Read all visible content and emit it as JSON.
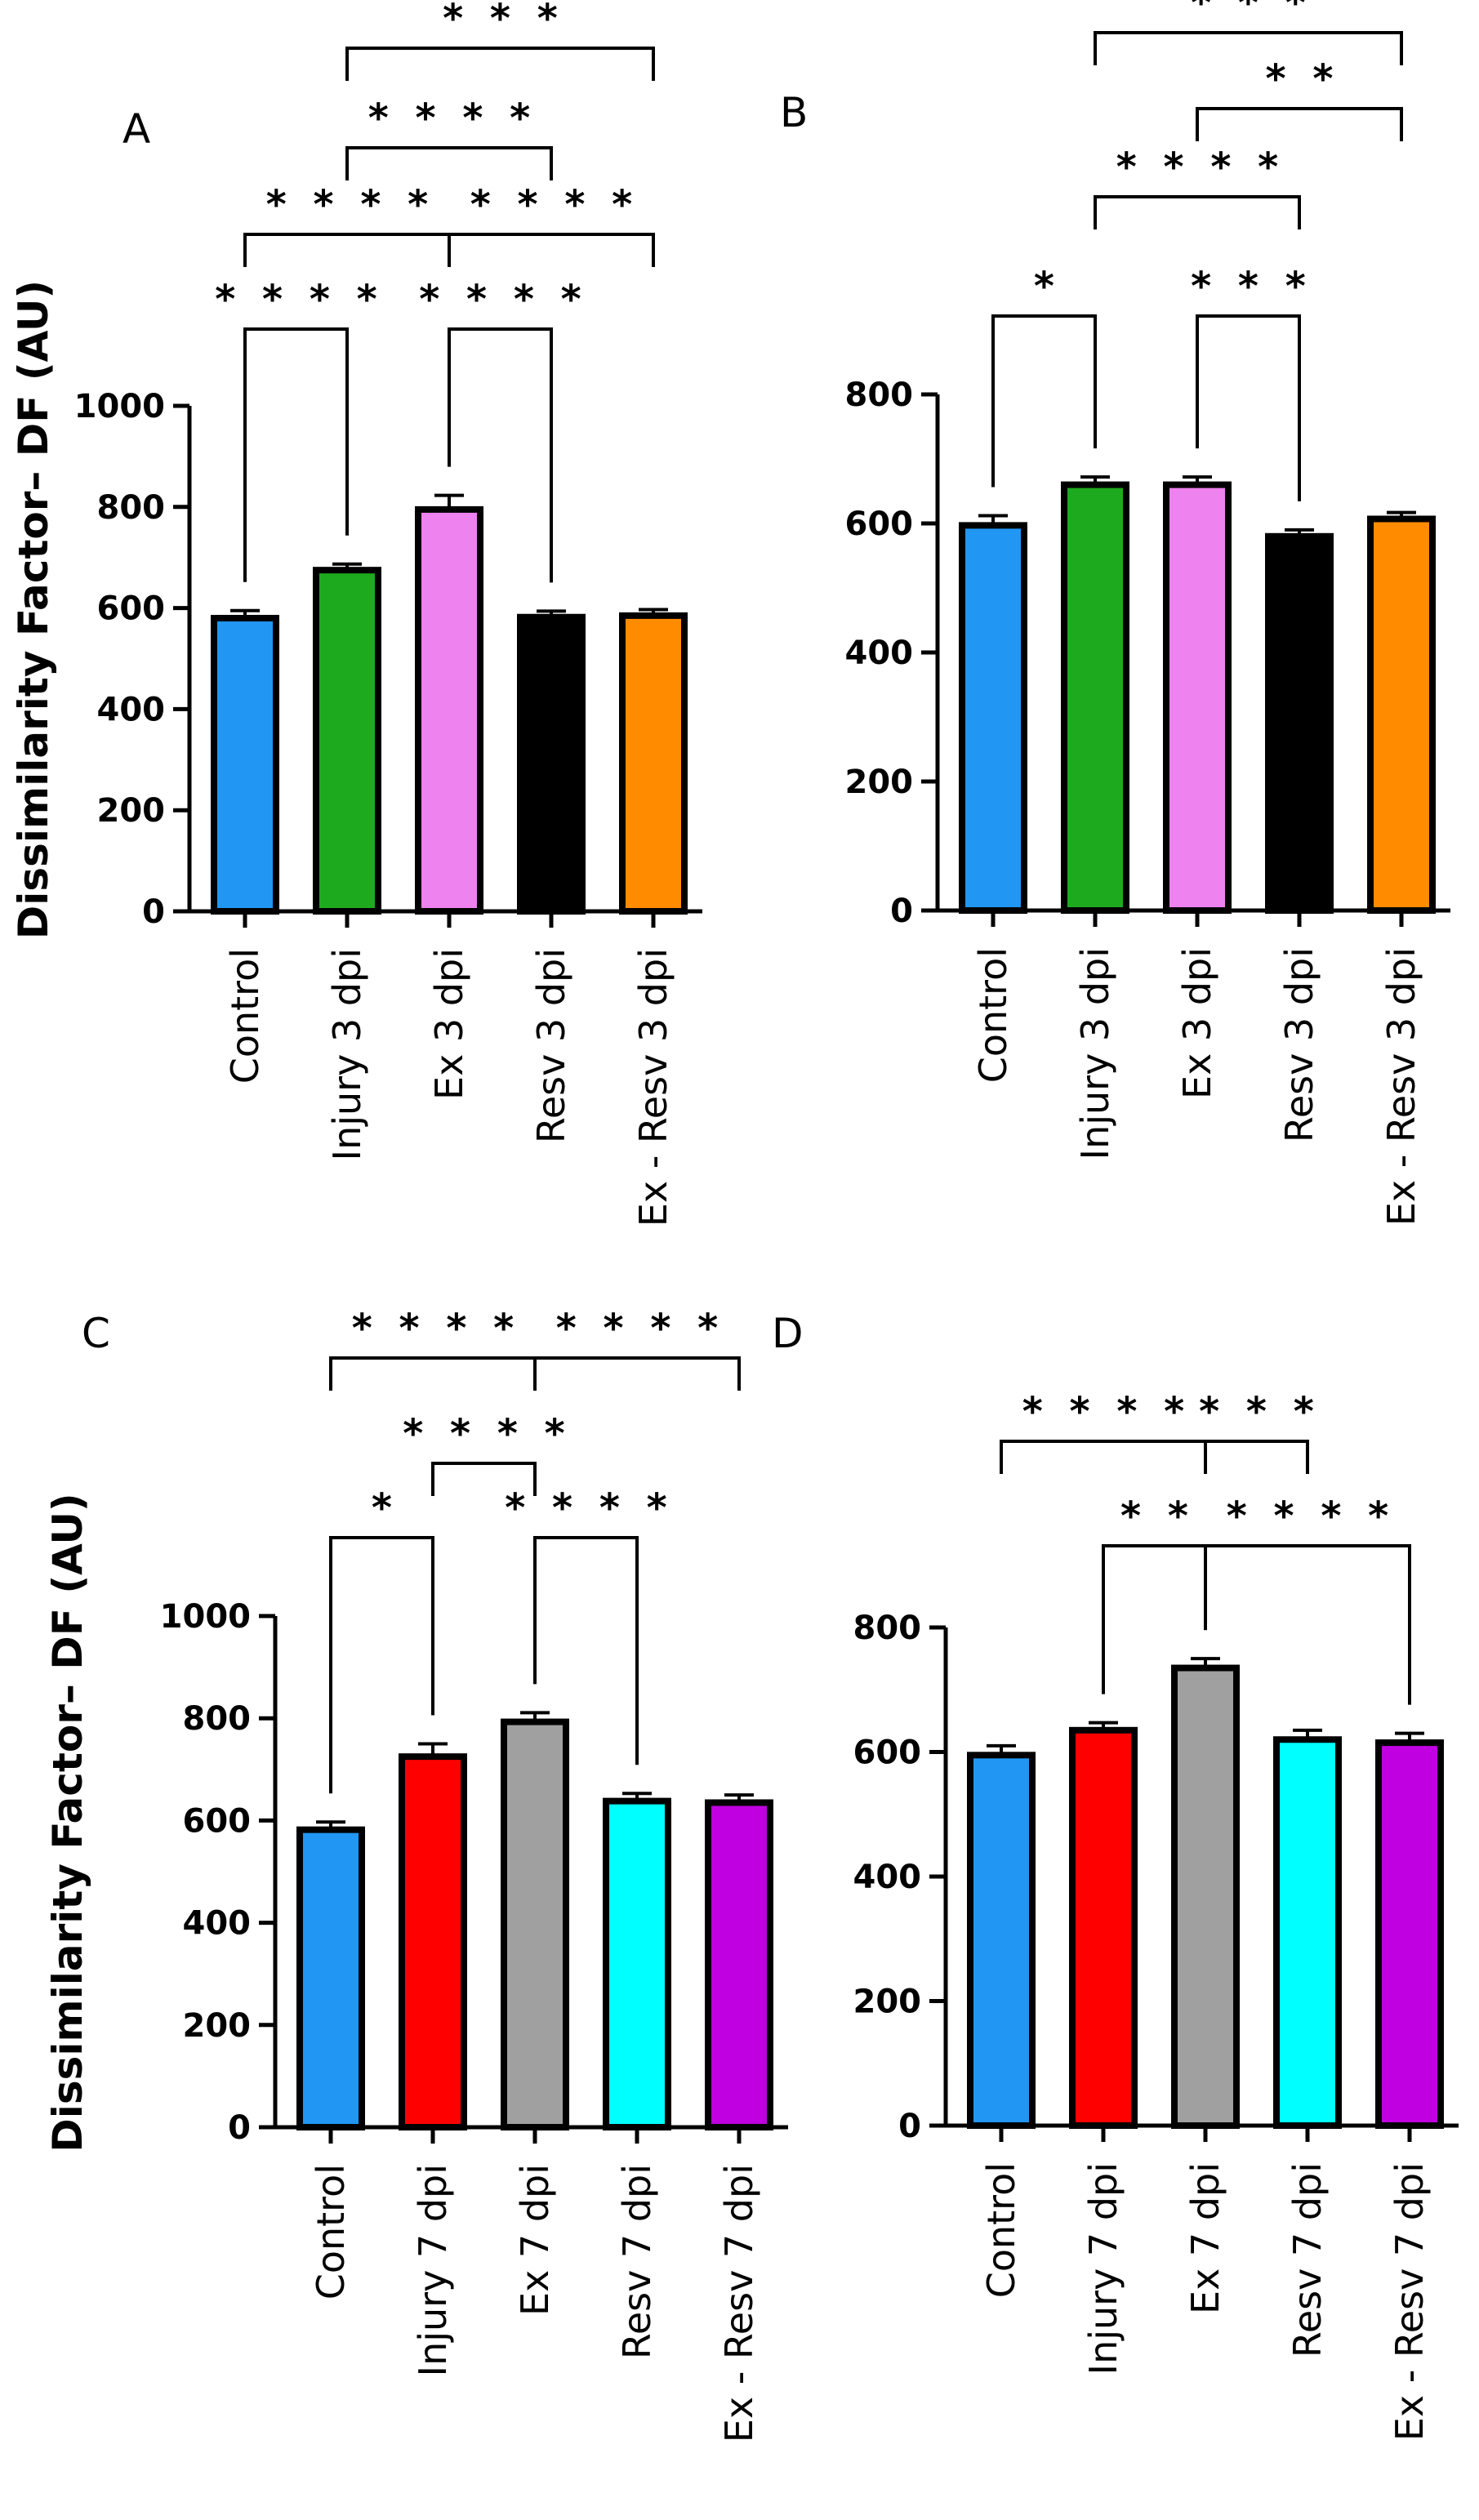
{
  "chart_data": [
    {
      "panel": "A",
      "type": "bar",
      "ylabel": "Dissimilarity Factor– DF (AU)",
      "ylim": [
        0,
        1000
      ],
      "yticks": [
        0,
        200,
        400,
        600,
        800,
        1000
      ],
      "categories": [
        "Control",
        "Injury 3 dpi",
        "Ex 3 dpi",
        "Resv 3 dpi",
        "Ex - Resv 3 dpi"
      ],
      "values": [
        580,
        675,
        795,
        582,
        585
      ],
      "errors": [
        15,
        12,
        28,
        12,
        12
      ],
      "colors": [
        "#2196F3",
        "#1EAA1E",
        "#EE82EE",
        "#000000",
        "#FF8C00"
      ],
      "comparisons": [
        {
          "from": 0,
          "to": 1,
          "level": 1,
          "label": "****"
        },
        {
          "from": 2,
          "to": 3,
          "level": 1,
          "label": "****"
        },
        {
          "from": 0,
          "to": 2,
          "level": 2,
          "label": "****"
        },
        {
          "from": 2,
          "to": 4,
          "level": 2,
          "label": "****"
        },
        {
          "from": 1,
          "to": 3,
          "level": 3,
          "label": "****"
        },
        {
          "from": 1,
          "to": 4,
          "level": 4,
          "label": "***"
        }
      ]
    },
    {
      "panel": "B",
      "type": "bar",
      "ylabel": "",
      "ylim": [
        0,
        800
      ],
      "yticks": [
        0,
        200,
        400,
        600,
        800
      ],
      "categories": [
        "Control",
        "Injury 3 dpi",
        "Ex 3 dpi",
        "Resv 3 dpi",
        "Ex - Resv 3 dpi"
      ],
      "values": [
        597,
        660,
        660,
        580,
        607
      ],
      "errors": [
        15,
        12,
        12,
        10,
        10
      ],
      "colors": [
        "#2196F3",
        "#1EAA1E",
        "#EE82EE",
        "#000000",
        "#FF8C00"
      ],
      "comparisons": [
        {
          "from": 0,
          "to": 1,
          "level": 1,
          "label": "*"
        },
        {
          "from": 2,
          "to": 3,
          "level": 1,
          "label": "***"
        },
        {
          "from": 1,
          "to": 3,
          "level": 2,
          "label": "****"
        },
        {
          "from": 2,
          "to": 4,
          "level": 3,
          "label": "**"
        },
        {
          "from": 1,
          "to": 4,
          "level": 4,
          "label": "***"
        }
      ]
    },
    {
      "panel": "C",
      "type": "bar",
      "ylabel": "Dissimilarity Factor– DF (AU)",
      "ylim": [
        0,
        1000
      ],
      "yticks": [
        0,
        200,
        400,
        600,
        800,
        1000
      ],
      "categories": [
        "Control",
        "Injury 7 dpi",
        "Ex 7 dpi",
        "Resv 7 dpi",
        "Ex - Resv 7 dpi"
      ],
      "values": [
        582,
        725,
        793,
        638,
        635
      ],
      "errors": [
        15,
        25,
        18,
        15,
        15
      ],
      "colors": [
        "#2196F3",
        "#FF0000",
        "#A0A0A0",
        "#00FFFF",
        "#C000E0"
      ],
      "comparisons": [
        {
          "from": 0,
          "to": 1,
          "level": 1,
          "label": "*"
        },
        {
          "from": 2,
          "to": 3,
          "level": 1,
          "label": "****"
        },
        {
          "from": 1,
          "to": 2,
          "level": 2,
          "label": "****"
        },
        {
          "from": 0,
          "to": 2,
          "level": 3,
          "label": "****"
        },
        {
          "from": 2,
          "to": 4,
          "level": 3,
          "label": "****"
        }
      ]
    },
    {
      "panel": "D",
      "type": "bar",
      "ylabel": "",
      "ylim": [
        0,
        800
      ],
      "yticks": [
        0,
        200,
        400,
        600,
        800
      ],
      "categories": [
        "Control",
        "Injury 7 dpi",
        "Ex 7 dpi",
        "Resv 7 dpi",
        "Ex - Resv 7 dpi"
      ],
      "values": [
        595,
        635,
        735,
        620,
        615
      ],
      "errors": [
        15,
        12,
        15,
        15,
        15
      ],
      "colors": [
        "#2196F3",
        "#FF0000",
        "#A0A0A0",
        "#00FFFF",
        "#C000E0"
      ],
      "comparisons": [
        {
          "from": 1,
          "to": 2,
          "level": 1,
          "label": "**"
        },
        {
          "from": 2,
          "to": 4,
          "level": 1,
          "label": "****"
        },
        {
          "from": 0,
          "to": 2,
          "level": 2,
          "label": "****"
        },
        {
          "from": 2,
          "to": 3,
          "level": 2,
          "label": "***"
        }
      ]
    }
  ]
}
